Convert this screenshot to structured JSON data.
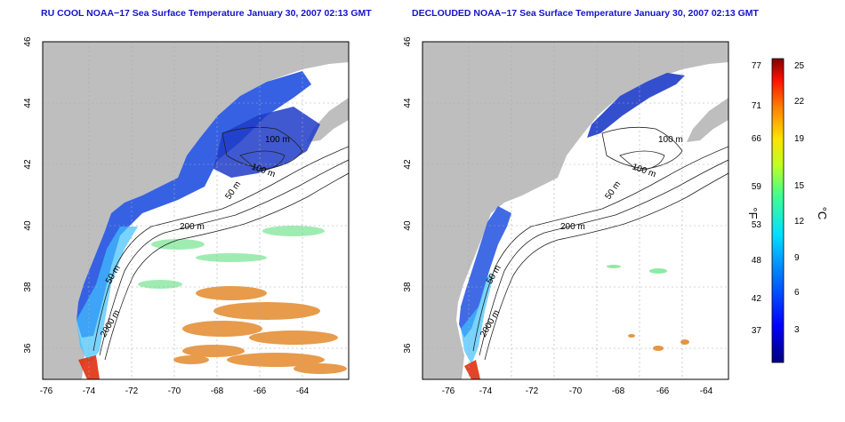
{
  "maps": [
    {
      "title": "RU COOL NOAA−17 Sea Surface Temperature January 30, 2007 02:13 GMT",
      "x_ticks": [
        "-76",
        "-74",
        "-72",
        "-70",
        "-68",
        "-66",
        "-64"
      ],
      "y_ticks": [
        "46",
        "44",
        "42",
        "40",
        "38",
        "36"
      ],
      "contour_labels": [
        "100 m",
        "100 m",
        "50 m",
        "200 m",
        "50 m",
        "2000 m"
      ]
    },
    {
      "title": "DECLOUDED NOAA−17 Sea Surface Temperature January 30, 2007 02:13 GMT",
      "x_ticks": [
        "-76",
        "-74",
        "-72",
        "-70",
        "-68",
        "-66",
        "-64"
      ],
      "y_ticks": [
        "46",
        "44",
        "42",
        "40",
        "38",
        "36"
      ],
      "contour_labels": [
        "100 m",
        "100 m",
        "50 m",
        "200 m",
        "50 m",
        "2000 m"
      ]
    }
  ],
  "colorbar": {
    "f_label": "°F",
    "c_label": "°C",
    "f_ticks": [
      "77",
      "71",
      "66",
      "59",
      "53",
      "48",
      "42",
      "37"
    ],
    "c_ticks": [
      "25",
      "22",
      "19",
      "15",
      "12",
      "9",
      "6",
      "3"
    ]
  },
  "colors": {
    "land": "#bebebe",
    "ocean": "#ffffff",
    "title": "#1414c8",
    "cold": "#1e3cc8",
    "warm": "#e07a10"
  }
}
